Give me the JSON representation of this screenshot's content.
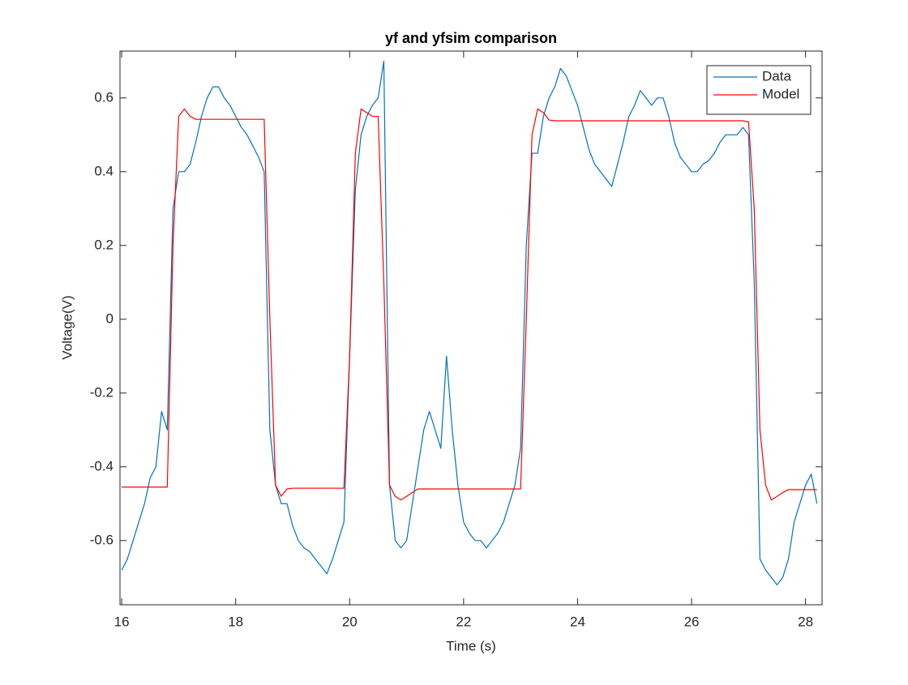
{
  "chart_data": {
    "type": "line",
    "title": "yf and yfsim comparison",
    "x_label": "Time (s)",
    "y_label": "Voltage(V)",
    "xlim": [
      15.97,
      28.29
    ],
    "ylim": [
      -0.774,
      0.727
    ],
    "xticks": [
      16,
      18,
      20,
      22,
      24,
      26,
      28
    ],
    "yticks": [
      -0.6,
      -0.4,
      -0.2,
      0,
      0.2,
      0.4,
      0.6
    ],
    "legend": "northeast",
    "x": [
      16.0,
      16.1,
      16.2,
      16.3,
      16.4,
      16.5,
      16.6,
      16.7,
      16.8,
      16.9,
      17.0,
      17.1,
      17.2,
      17.3,
      17.4,
      17.5,
      17.6,
      17.7,
      17.8,
      17.9,
      18.0,
      18.1,
      18.2,
      18.3,
      18.4,
      18.5,
      18.6,
      18.7,
      18.8,
      18.9,
      19.0,
      19.1,
      19.2,
      19.3,
      19.4,
      19.5,
      19.6,
      19.7,
      19.8,
      19.9,
      20.0,
      20.1,
      20.2,
      20.3,
      20.4,
      20.5,
      20.6,
      20.7,
      20.8,
      20.9,
      21.0,
      21.1,
      21.2,
      21.3,
      21.4,
      21.5,
      21.6,
      21.7,
      21.8,
      21.9,
      22.0,
      22.1,
      22.2,
      22.3,
      22.4,
      22.5,
      22.6,
      22.7,
      22.8,
      22.9,
      23.0,
      23.1,
      23.2,
      23.3,
      23.4,
      23.5,
      23.6,
      23.7,
      23.8,
      23.9,
      24.0,
      24.1,
      24.2,
      24.3,
      24.4,
      24.5,
      24.6,
      24.7,
      24.8,
      24.9,
      25.0,
      25.1,
      25.2,
      25.3,
      25.4,
      25.5,
      25.6,
      25.7,
      25.8,
      25.9,
      26.0,
      26.1,
      26.2,
      26.3,
      26.4,
      26.5,
      26.6,
      26.7,
      26.8,
      26.9,
      27.0,
      27.1,
      27.2,
      27.3,
      27.4,
      27.5,
      27.6,
      27.7,
      27.8,
      27.9,
      28.0,
      28.1,
      28.2
    ],
    "series": [
      {
        "name": "Data",
        "color": "#0072bd",
        "values": [
          -0.68,
          -0.65,
          -0.6,
          -0.55,
          -0.5,
          -0.43,
          -0.4,
          -0.25,
          -0.3,
          0.3,
          0.4,
          0.4,
          0.42,
          0.48,
          0.55,
          0.6,
          0.63,
          0.63,
          0.6,
          0.58,
          0.55,
          0.52,
          0.5,
          0.47,
          0.44,
          0.4,
          -0.3,
          -0.45,
          -0.5,
          -0.5,
          -0.56,
          -0.6,
          -0.62,
          -0.63,
          -0.65,
          -0.67,
          -0.69,
          -0.65,
          -0.6,
          -0.55,
          -0.1,
          0.35,
          0.5,
          0.55,
          0.58,
          0.6,
          0.7,
          -0.45,
          -0.6,
          -0.62,
          -0.6,
          -0.5,
          -0.4,
          -0.3,
          -0.25,
          -0.3,
          -0.35,
          -0.1,
          -0.3,
          -0.45,
          -0.55,
          -0.58,
          -0.6,
          -0.6,
          -0.62,
          -0.6,
          -0.58,
          -0.55,
          -0.5,
          -0.45,
          -0.35,
          0.2,
          0.45,
          0.45,
          0.55,
          0.6,
          0.63,
          0.68,
          0.66,
          0.62,
          0.58,
          0.52,
          0.46,
          0.42,
          0.4,
          0.38,
          0.36,
          0.42,
          0.48,
          0.55,
          0.58,
          0.62,
          0.6,
          0.58,
          0.6,
          0.6,
          0.55,
          0.48,
          0.44,
          0.42,
          0.4,
          0.4,
          0.42,
          0.43,
          0.45,
          0.48,
          0.5,
          0.5,
          0.5,
          0.52,
          0.5,
          0.1,
          -0.65,
          -0.68,
          -0.7,
          -0.72,
          -0.7,
          -0.65,
          -0.55,
          -0.5,
          -0.45,
          -0.42,
          -0.5
        ]
      },
      {
        "name": "Model",
        "color": "#ff0000",
        "values": [
          -0.455,
          -0.455,
          -0.455,
          -0.455,
          -0.455,
          -0.455,
          -0.455,
          -0.455,
          -0.455,
          0.2,
          0.55,
          0.57,
          0.55,
          0.542,
          0.542,
          0.542,
          0.542,
          0.542,
          0.542,
          0.542,
          0.542,
          0.542,
          0.542,
          0.542,
          0.542,
          0.542,
          0.0,
          -0.45,
          -0.48,
          -0.46,
          -0.458,
          -0.458,
          -0.458,
          -0.458,
          -0.458,
          -0.458,
          -0.458,
          -0.458,
          -0.458,
          -0.458,
          -0.1,
          0.45,
          0.57,
          0.56,
          0.55,
          0.55,
          0.1,
          -0.45,
          -0.48,
          -0.49,
          -0.48,
          -0.47,
          -0.46,
          -0.46,
          -0.46,
          -0.46,
          -0.46,
          -0.46,
          -0.46,
          -0.46,
          -0.46,
          -0.46,
          -0.46,
          -0.46,
          -0.46,
          -0.46,
          -0.46,
          -0.46,
          -0.46,
          -0.46,
          -0.46,
          0.0,
          0.5,
          0.57,
          0.56,
          0.54,
          0.538,
          0.538,
          0.538,
          0.538,
          0.538,
          0.538,
          0.538,
          0.538,
          0.538,
          0.538,
          0.538,
          0.538,
          0.538,
          0.538,
          0.538,
          0.538,
          0.538,
          0.538,
          0.538,
          0.538,
          0.538,
          0.538,
          0.538,
          0.538,
          0.538,
          0.538,
          0.538,
          0.538,
          0.538,
          0.538,
          0.538,
          0.538,
          0.538,
          0.538,
          0.535,
          0.3,
          -0.3,
          -0.45,
          -0.49,
          -0.48,
          -0.47,
          -0.462,
          -0.462,
          -0.462,
          -0.462,
          -0.462,
          -0.462
        ]
      }
    ]
  }
}
